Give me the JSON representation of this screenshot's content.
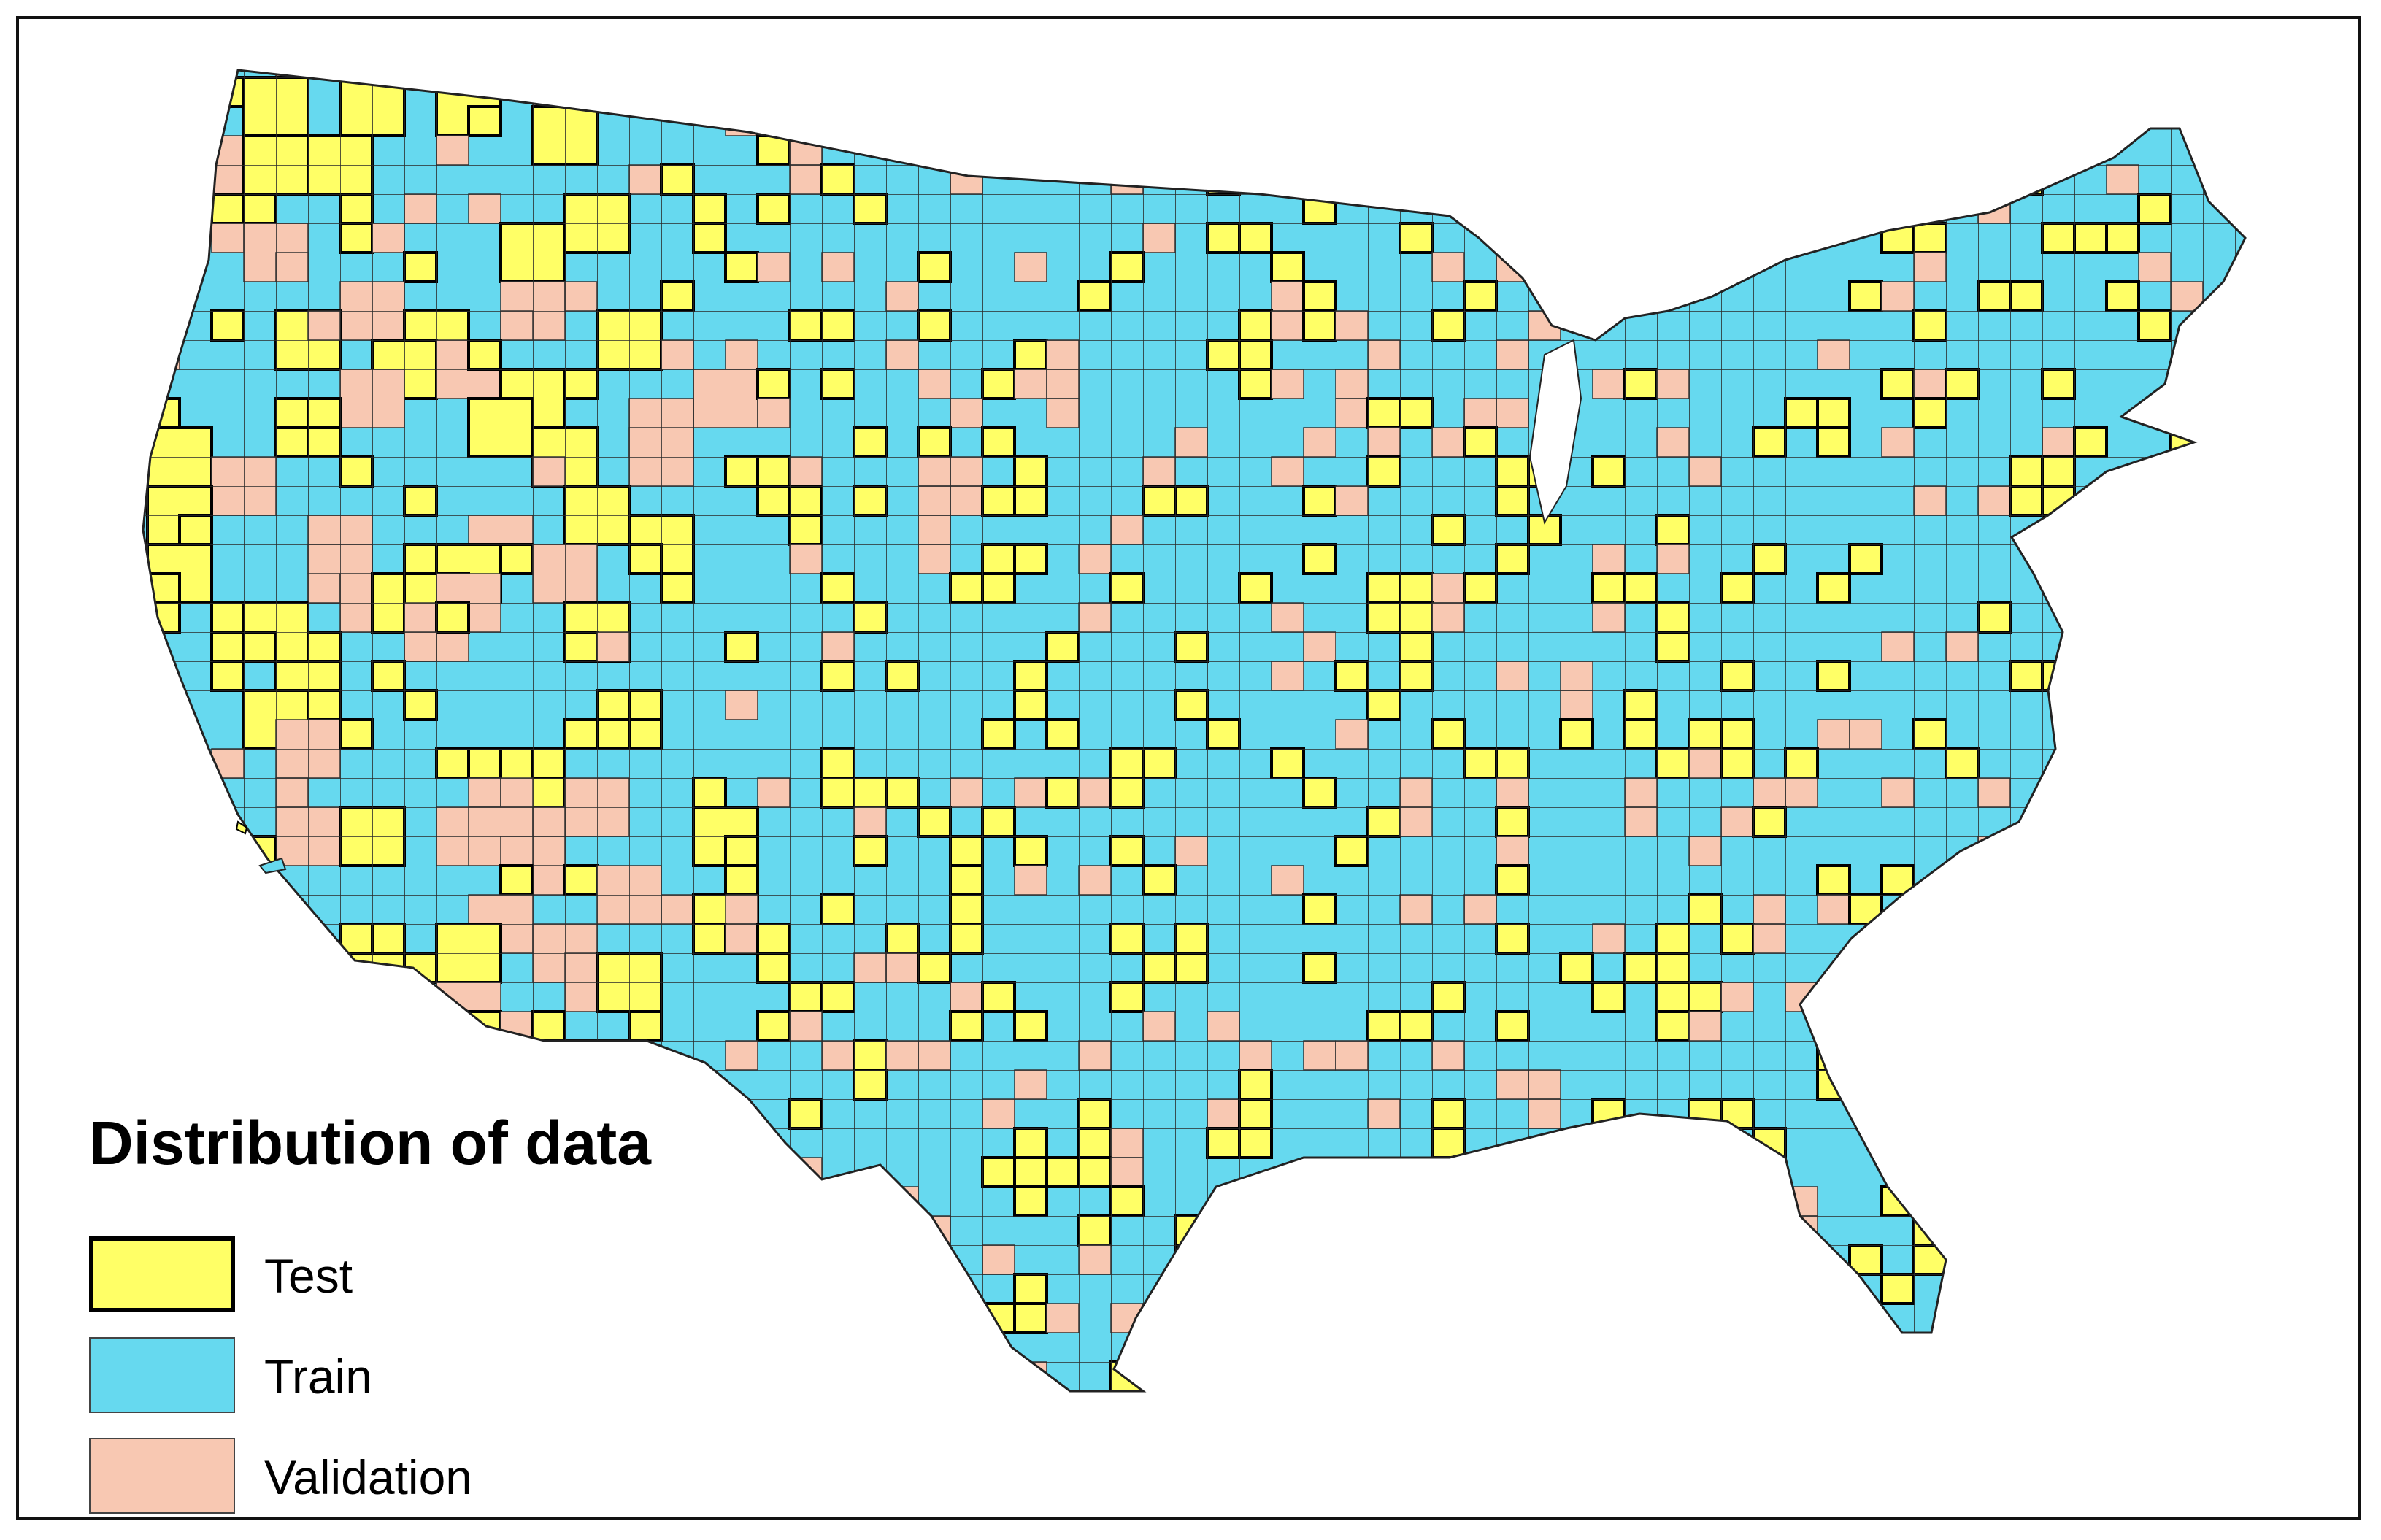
{
  "legend": {
    "title": "Distribution of data",
    "items": [
      {
        "label": "Test",
        "color": "#ffff66",
        "border": "#000000"
      },
      {
        "label": "Train",
        "color": "#66d9ef",
        "border": "#444444"
      },
      {
        "label": "Validation",
        "color": "#f8c8b2",
        "border": "#444444"
      }
    ]
  },
  "map": {
    "subject": "contiguous United States counties",
    "base_color": "#66d9ef",
    "boundary_color": "#222222",
    "categories": [
      "Test",
      "Train",
      "Validation"
    ]
  }
}
